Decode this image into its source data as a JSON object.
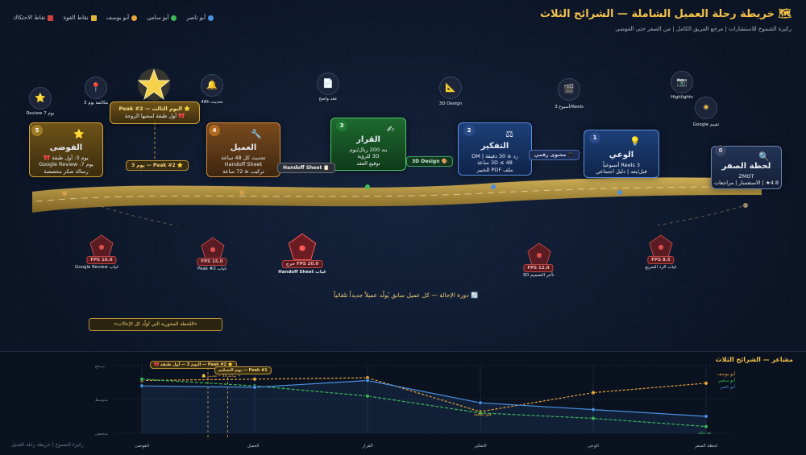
{
  "header": {
    "title": "🗺 خريطة رحلة العميل الشاملة — الشرائح الثلاث",
    "subtitle": "ركيزة الشموخ للاستشارات | مرجع الفريق الكامل | من الصفر حتى الفوضى"
  },
  "legend": [
    {
      "label": "أبو ناصر",
      "color": "#4a8fe0",
      "shape": "circle"
    },
    {
      "label": "أبو سامي",
      "color": "#3fb85a",
      "shape": "circle"
    },
    {
      "label": "أبو يوسف",
      "color": "#e9a53a",
      "shape": "circle"
    },
    {
      "label": "نقاط القوة",
      "color": "#e0b53a",
      "shape": "square"
    },
    {
      "label": "نقاط الاحتكاك",
      "color": "#d04040",
      "shape": "square"
    }
  ],
  "stages": [
    {
      "num": "0",
      "name": "لحظة الصفر",
      "lines": [
        "ZMOT",
        "4.8★ | الاستفسار | مراجعات"
      ],
      "icon": "🔍"
    },
    {
      "num": "1",
      "name": "الوعي",
      "lines": [
        "3 Reels أسبوعياً",
        "قبل/بعد | دليل اجتماعي"
      ],
      "icon": "💡"
    },
    {
      "num": "2",
      "name": "التفكير",
      "lines": [
        "رد ≤ 30 دقيقة | DM",
        "3D ≤ 48 ساعة",
        "ملف PDF للخبير"
      ],
      "icon": "⚖"
    },
    {
      "num": "3",
      "name": "القرار",
      "lines": [
        "بند 200 ريال/يوم",
        "3D للرؤية",
        "توقيع العقد"
      ],
      "icon": "✍"
    },
    {
      "num": "4",
      "name": "العميل",
      "lines": [
        "تحديث كل 48 ساعة",
        "Handoff Sheet",
        "تركيب ≤ 72 ساعة"
      ],
      "icon": "🔧"
    },
    {
      "num": "5",
      "name": "الفوضى",
      "lines": [
        "يوم 3: أول طبقة 🎀",
        "يوم 7: Google Review",
        "رسالة شكر مخصصة"
      ],
      "icon": "⭐"
    }
  ],
  "peak_card": {
    "title": "⭐ اليوم الثالث — Peak #2",
    "line": "🎀 أول طبقة لمشها الزوجة"
  },
  "peak_tag": "⭐ Peak #2 — يوم 3",
  "markers": [
    {
      "icon": "⭐",
      "label": "يوم 7 Review"
    },
    {
      "icon": "📍",
      "label": "مكالمة يوم 3"
    },
    {
      "icon": "🔔",
      "label": "تحديث 48h"
    },
    {
      "icon": "📄",
      "label": "عقد واضح"
    },
    {
      "icon": "📐",
      "label": "3D Design"
    },
    {
      "icon": "🎬",
      "label": "Reels/أسبوع 3"
    },
    {
      "icon": "📷",
      "label": "Highlights"
    },
    {
      "icon": "✷",
      "label": "تقييم Google"
    }
  ],
  "tags": {
    "handoff": "📋 Handoff Sheet",
    "design3d": "🎨 3D Design",
    "digital": "📱 محتوى رقمي"
  },
  "pain_points": [
    {
      "fps": "FPS 16.0",
      "label": "غياب Google Review"
    },
    {
      "fps": "FPS 15.0",
      "label": "غياب Peak #2"
    },
    {
      "fps": "FPS 20.0 حرج",
      "label": "غياب Handoff Sheet"
    },
    {
      "fps": "FPS 12.0",
      "label": "تأخر التصميم 3D"
    },
    {
      "fps": "FPS 8.5",
      "label": "غياب الرد السريع"
    }
  ],
  "loop_text": "🔄 دورة الإحالة — كل عميل سابق يُولّد عميلاً جديداً تلقائياً",
  "moment_text": "«اللحظة المحورية التي تُولّد كل الإحالات»",
  "emotion_panel": {
    "title": "مشاعر — الشرائح الثلاث",
    "ylabels": [
      "مرتفع",
      "متوسط",
      "منخفض"
    ],
    "peak_labels": [
      "⭐ Peak #2 — اليوم 3 — أول طبقة 🎀",
      "Peak #1 — يوم التسليم",
      "→ ساعة 48 ← تحديث 🔔"
    ],
    "point_notes": [
      "قلق التكلفة",
      "ثقة عالية"
    ],
    "footer": "ركيزة الشموخ | خريطة رحلة العميل"
  },
  "chart_data": {
    "type": "line",
    "categories": [
      "الفوضى",
      "العميل",
      "القرار",
      "التفكير",
      "الوعي",
      "لحظة الصفر"
    ],
    "ylim": [
      0,
      100
    ],
    "series": [
      {
        "name": "أبو يوسف",
        "color": "#e9a53a",
        "values": [
          78,
          80,
          82,
          32,
          60,
          74
        ]
      },
      {
        "name": "أبو سامي",
        "color": "#3fb85a",
        "values": [
          80,
          70,
          55,
          30,
          22,
          10
        ]
      },
      {
        "name": "أبو ناصر",
        "color": "#4a8fe0",
        "values": [
          70,
          68,
          78,
          45,
          35,
          25
        ]
      }
    ]
  }
}
